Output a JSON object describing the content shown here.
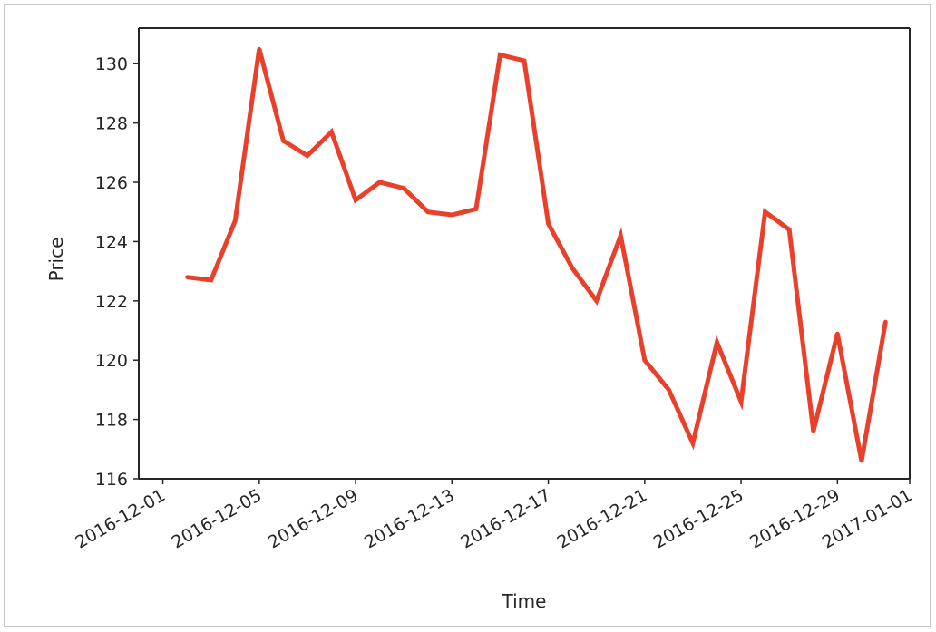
{
  "chart_data": {
    "type": "line",
    "title": "",
    "xlabel": "Time",
    "ylabel": "Price",
    "x_tick_labels": [
      "2016-12-01",
      "2016-12-05",
      "2016-12-09",
      "2016-12-13",
      "2016-12-17",
      "2016-12-21",
      "2016-12-25",
      "2016-12-29",
      "2017-01-01"
    ],
    "y_ticks": [
      116,
      118,
      120,
      122,
      124,
      126,
      128,
      130
    ],
    "xlim": [
      "2016-11-30",
      "2017-01-01"
    ],
    "ylim": [
      116,
      131.2
    ],
    "grid": false,
    "series": [
      {
        "color": "#e8402a",
        "x": [
          "2016-12-02",
          "2016-12-03",
          "2016-12-04",
          "2016-12-05",
          "2016-12-06",
          "2016-12-07",
          "2016-12-08",
          "2016-12-09",
          "2016-12-10",
          "2016-12-11",
          "2016-12-12",
          "2016-12-13",
          "2016-12-14",
          "2016-12-15",
          "2016-12-16",
          "2016-12-17",
          "2016-12-18",
          "2016-12-19",
          "2016-12-20",
          "2016-12-21",
          "2016-12-22",
          "2016-12-23",
          "2016-12-24",
          "2016-12-25",
          "2016-12-26",
          "2016-12-27",
          "2016-12-28",
          "2016-12-29",
          "2016-12-30",
          "2016-12-31"
        ],
        "values": [
          122.8,
          122.7,
          124.7,
          130.5,
          127.4,
          126.9,
          127.7,
          125.4,
          126.0,
          125.8,
          125.0,
          124.9,
          125.1,
          130.3,
          130.1,
          124.6,
          123.1,
          122.0,
          124.2,
          120.0,
          119.0,
          117.2,
          120.6,
          118.6,
          125.0,
          124.4,
          117.6,
          120.9,
          116.6,
          121.3
        ]
      }
    ]
  }
}
